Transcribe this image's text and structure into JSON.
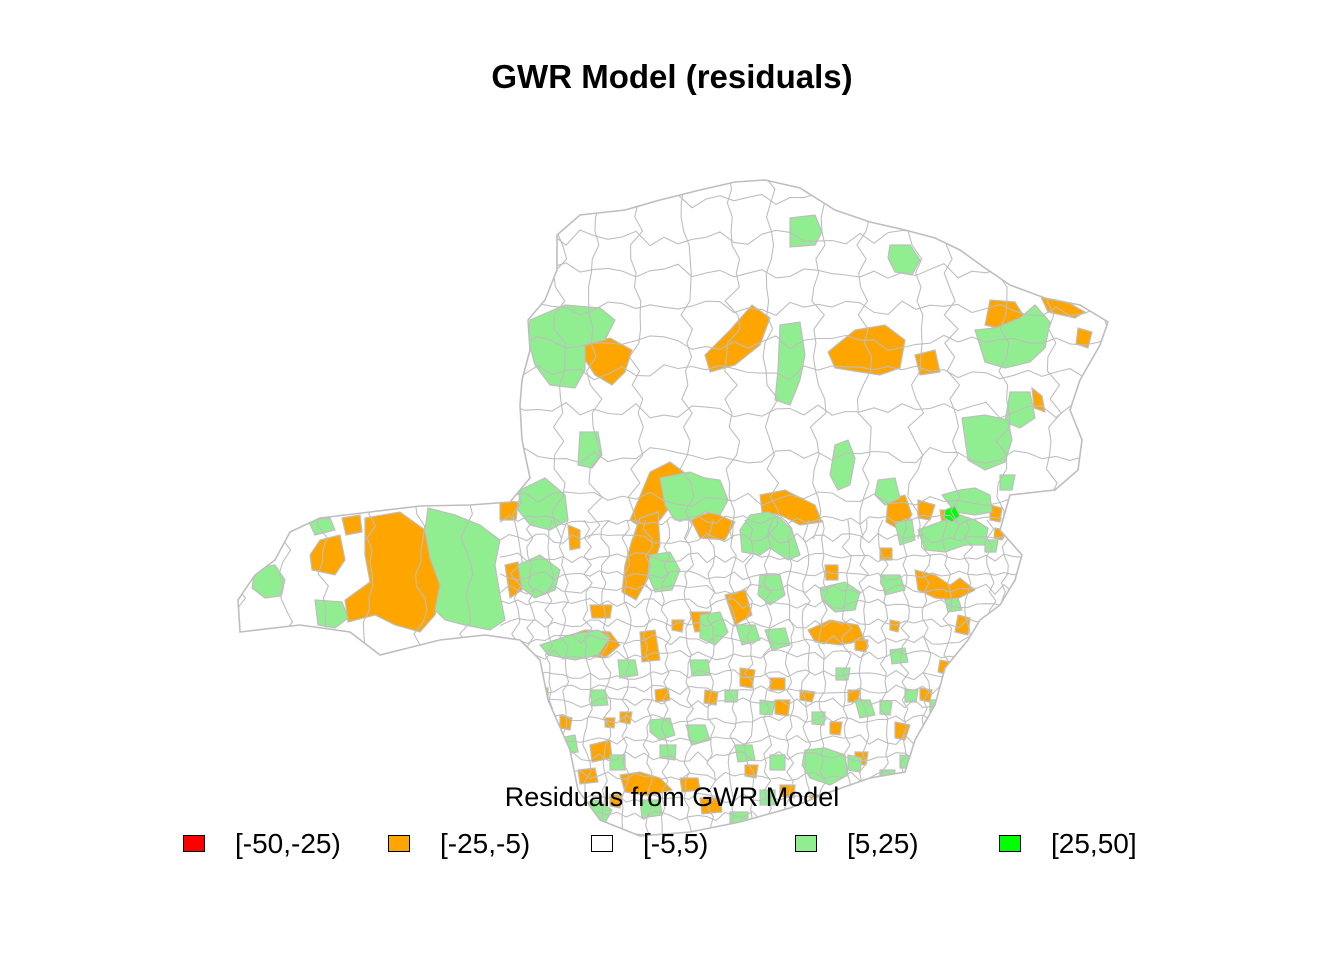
{
  "title": "GWR Model (residuals)",
  "legend": {
    "title": "Residuals from GWR Model",
    "items": [
      {
        "label": "[-50,-25)",
        "color": "#ff0000"
      },
      {
        "label": "[-25,-5)",
        "color": "#ffa500"
      },
      {
        "label": "[-5,5)",
        "color": "#ffffff"
      },
      {
        "label": "[5,25)",
        "color": "#90ee90"
      },
      {
        "label": "[25,50]",
        "color": "#00ff00"
      }
    ]
  },
  "colors": {
    "border": "#bebebe",
    "background": "#ffffff"
  }
}
